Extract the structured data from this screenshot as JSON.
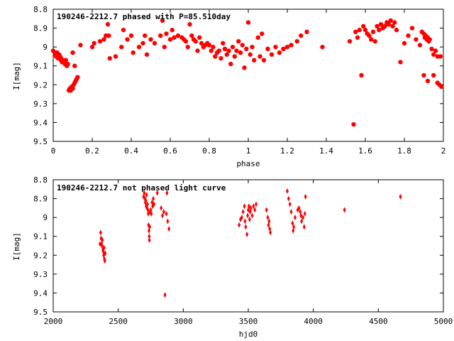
{
  "chart_data": [
    {
      "type": "scatter",
      "title": "190246-2212.7 phased with P=85.510day",
      "xlabel": "phase",
      "ylabel": "I[mag]",
      "xlim": [
        0,
        2
      ],
      "ylim": [
        9.5,
        8.8
      ],
      "y_inverted": true,
      "xticks": [
        "0",
        "0.2",
        "0.4",
        "0.6",
        "0.8",
        "1",
        "1.2",
        "1.4",
        "1.6",
        "1.8",
        "2"
      ],
      "yticks": [
        "8.8",
        "8.9",
        "9",
        "9.1",
        "9.2",
        "9.3",
        "9.4",
        "9.5"
      ],
      "color": "#ff0000",
      "marker": "filled-circle",
      "points": [
        [
          0.0,
          9.02
        ],
        [
          0.01,
          9.03
        ],
        [
          0.01,
          9.04
        ],
        [
          0.015,
          9.05
        ],
        [
          0.02,
          9.03
        ],
        [
          0.02,
          9.05
        ],
        [
          0.025,
          9.06
        ],
        [
          0.03,
          9.04
        ],
        [
          0.03,
          9.06
        ],
        [
          0.035,
          9.05
        ],
        [
          0.04,
          9.07
        ],
        [
          0.04,
          9.06
        ],
        [
          0.045,
          9.08
        ],
        [
          0.05,
          9.07
        ],
        [
          0.05,
          9.08
        ],
        [
          0.055,
          9.08
        ],
        [
          0.06,
          9.09
        ],
        [
          0.065,
          9.07
        ],
        [
          0.07,
          9.1
        ],
        [
          0.075,
          9.09
        ],
        [
          0.08,
          9.23
        ],
        [
          0.085,
          9.22
        ],
        [
          0.09,
          9.23
        ],
        [
          0.095,
          9.21
        ],
        [
          0.1,
          9.22
        ],
        [
          0.105,
          9.2
        ],
        [
          0.11,
          9.19
        ],
        [
          0.115,
          9.18
        ],
        [
          0.12,
          9.17
        ],
        [
          0.125,
          9.16
        ],
        [
          0.1,
          9.03
        ],
        [
          0.14,
          8.99
        ],
        [
          0.11,
          9.1
        ],
        [
          0.2,
          9.0
        ],
        [
          0.21,
          8.98
        ],
        [
          0.24,
          8.97
        ],
        [
          0.26,
          8.96
        ],
        [
          0.27,
          8.94
        ],
        [
          0.28,
          8.88
        ],
        [
          0.285,
          8.94
        ],
        [
          0.29,
          9.06
        ],
        [
          0.32,
          9.05
        ],
        [
          0.35,
          9.0
        ],
        [
          0.36,
          8.91
        ],
        [
          0.38,
          8.96
        ],
        [
          0.4,
          8.94
        ],
        [
          0.41,
          9.03
        ],
        [
          0.44,
          9.0
        ],
        [
          0.46,
          8.98
        ],
        [
          0.47,
          8.94
        ],
        [
          0.48,
          9.04
        ],
        [
          0.5,
          8.96
        ],
        [
          0.52,
          8.98
        ],
        [
          0.55,
          8.94
        ],
        [
          0.56,
          8.86
        ],
        [
          0.57,
          9.0
        ],
        [
          0.58,
          8.93
        ],
        [
          0.6,
          8.96
        ],
        [
          0.61,
          8.91
        ],
        [
          0.62,
          8.95
        ],
        [
          0.64,
          8.94
        ],
        [
          0.66,
          8.95
        ],
        [
          0.67,
          8.96
        ],
        [
          0.68,
          8.97
        ],
        [
          0.69,
          9.0
        ],
        [
          0.7,
          8.88
        ],
        [
          0.71,
          8.94
        ],
        [
          0.72,
          8.96
        ],
        [
          0.73,
          8.97
        ],
        [
          0.74,
          9.02
        ],
        [
          0.75,
          8.95
        ],
        [
          0.76,
          8.98
        ],
        [
          0.77,
          9.0
        ],
        [
          0.78,
          8.99
        ],
        [
          0.79,
          8.98
        ],
        [
          0.8,
          8.99
        ],
        [
          0.81,
          9.02
        ],
        [
          0.82,
          9.0
        ],
        [
          0.83,
          9.05
        ],
        [
          0.84,
          9.03
        ],
        [
          0.85,
          9.02
        ],
        [
          0.86,
          9.06
        ],
        [
          0.87,
          8.98
        ],
        [
          0.88,
          9.01
        ],
        [
          0.89,
          9.04
        ],
        [
          0.9,
          9.02
        ],
        [
          0.91,
          9.09
        ],
        [
          0.92,
          9.0
        ],
        [
          0.93,
          9.05
        ],
        [
          0.94,
          9.02
        ],
        [
          0.95,
          8.97
        ],
        [
          0.96,
          9.03
        ],
        [
          0.97,
          8.99
        ],
        [
          0.98,
          9.11
        ],
        [
          0.99,
          9.01
        ],
        [
          1.0,
          8.87
        ],
        [
          1.01,
          9.04
        ],
        [
          1.02,
          9.0
        ],
        [
          1.03,
          9.07
        ],
        [
          1.05,
          8.95
        ],
        [
          1.06,
          9.05
        ],
        [
          1.07,
          8.93
        ],
        [
          1.08,
          9.07
        ],
        [
          1.1,
          9.01
        ],
        [
          1.12,
          9.04
        ],
        [
          1.14,
          9.0
        ],
        [
          1.16,
          9.03
        ],
        [
          1.18,
          9.01
        ],
        [
          1.2,
          9.0
        ],
        [
          1.22,
          8.99
        ],
        [
          1.25,
          8.97
        ],
        [
          1.27,
          8.94
        ],
        [
          1.3,
          8.92
        ],
        [
          1.38,
          9.0
        ],
        [
          1.52,
          8.97
        ],
        [
          1.54,
          9.41
        ],
        [
          1.55,
          8.92
        ],
        [
          1.56,
          8.95
        ],
        [
          1.57,
          8.91
        ],
        [
          1.58,
          9.15
        ],
        [
          1.59,
          8.89
        ],
        [
          1.6,
          8.91
        ],
        [
          1.61,
          8.93
        ],
        [
          1.62,
          8.94
        ],
        [
          1.63,
          8.96
        ],
        [
          1.64,
          8.92
        ],
        [
          1.65,
          8.97
        ],
        [
          1.66,
          8.89
        ],
        [
          1.67,
          8.91
        ],
        [
          1.68,
          8.88
        ],
        [
          1.69,
          8.9
        ],
        [
          1.7,
          8.89
        ],
        [
          1.71,
          8.87
        ],
        [
          1.72,
          8.88
        ],
        [
          1.73,
          8.86
        ],
        [
          1.74,
          8.89
        ],
        [
          1.75,
          8.87
        ],
        [
          1.76,
          8.91
        ],
        [
          1.78,
          9.08
        ],
        [
          1.8,
          8.98
        ],
        [
          1.82,
          8.94
        ],
        [
          1.84,
          8.9
        ],
        [
          1.86,
          8.96
        ],
        [
          1.88,
          8.99
        ],
        [
          1.89,
          8.92
        ],
        [
          1.9,
          8.93
        ],
        [
          1.905,
          8.95
        ],
        [
          1.91,
          8.94
        ],
        [
          1.915,
          8.96
        ],
        [
          1.92,
          8.95
        ],
        [
          1.925,
          8.97
        ],
        [
          1.93,
          8.96
        ],
        [
          1.94,
          9.01
        ],
        [
          1.95,
          9.04
        ],
        [
          1.96,
          9.02
        ],
        [
          1.97,
          9.05
        ],
        [
          1.9,
          9.15
        ],
        [
          1.92,
          9.18
        ],
        [
          1.95,
          9.15
        ],
        [
          1.97,
          9.19
        ],
        [
          1.98,
          9.2
        ],
        [
          1.99,
          9.21
        ],
        [
          1.985,
          9.05
        ]
      ]
    },
    {
      "type": "scatter",
      "title": "190246-2212.7 not phased light curve",
      "xlabel": "hjd0",
      "ylabel": "I[mag]",
      "xlim": [
        2000,
        5000
      ],
      "ylim": [
        9.5,
        8.8
      ],
      "y_inverted": true,
      "xticks": [
        "2000",
        "2500",
        "3000",
        "3500",
        "4000",
        "4500",
        "5000"
      ],
      "yticks": [
        "8.8",
        "8.9",
        "9",
        "9.1",
        "9.2",
        "9.3",
        "9.4",
        "9.5"
      ],
      "color": "#ff0000",
      "marker": "filled-diamond",
      "points": [
        [
          2365,
          9.08
        ],
        [
          2368,
          9.11
        ],
        [
          2372,
          9.14
        ],
        [
          2375,
          9.15
        ],
        [
          2378,
          9.12
        ],
        [
          2382,
          9.17
        ],
        [
          2385,
          9.18
        ],
        [
          2388,
          9.2
        ],
        [
          2391,
          9.16
        ],
        [
          2394,
          9.22
        ],
        [
          2397,
          9.23
        ],
        [
          2400,
          9.19
        ],
        [
          2360,
          9.14
        ],
        [
          2695,
          8.89
        ],
        [
          2700,
          8.87
        ],
        [
          2705,
          8.9
        ],
        [
          2708,
          8.92
        ],
        [
          2712,
          8.91
        ],
        [
          2715,
          8.94
        ],
        [
          2718,
          8.88
        ],
        [
          2722,
          8.95
        ],
        [
          2725,
          8.93
        ],
        [
          2728,
          8.96
        ],
        [
          2731,
          8.98
        ],
        [
          2733,
          9.04
        ],
        [
          2736,
          9.07
        ],
        [
          2738,
          9.1
        ],
        [
          2740,
          9.12
        ],
        [
          2742,
          9.05
        ],
        [
          2745,
          8.97
        ],
        [
          2750,
          8.96
        ],
        [
          2755,
          8.98
        ],
        [
          2760,
          8.92
        ],
        [
          2765,
          8.94
        ],
        [
          2770,
          8.9
        ],
        [
          2775,
          8.93
        ],
        [
          2800,
          8.87
        ],
        [
          2830,
          8.95
        ],
        [
          2840,
          8.99
        ],
        [
          2850,
          8.97
        ],
        [
          2860,
          9.41
        ],
        [
          2870,
          8.98
        ],
        [
          2880,
          9.02
        ],
        [
          2890,
          9.06
        ],
        [
          2875,
          8.87
        ],
        [
          3430,
          9.04
        ],
        [
          3440,
          9.01
        ],
        [
          3450,
          9.0
        ],
        [
          3460,
          8.97
        ],
        [
          3470,
          8.94
        ],
        [
          3475,
          9.02
        ],
        [
          3480,
          9.05
        ],
        [
          3490,
          9.09
        ],
        [
          3495,
          8.99
        ],
        [
          3500,
          8.96
        ],
        [
          3505,
          8.94
        ],
        [
          3510,
          9.01
        ],
        [
          3515,
          8.97
        ],
        [
          3520,
          8.95
        ],
        [
          3530,
          8.99
        ],
        [
          3540,
          8.94
        ],
        [
          3550,
          8.96
        ],
        [
          3560,
          8.93
        ],
        [
          3640,
          8.96
        ],
        [
          3650,
          9.0
        ],
        [
          3655,
          9.04
        ],
        [
          3660,
          9.02
        ],
        [
          3665,
          9.06
        ],
        [
          3670,
          9.08
        ],
        [
          3800,
          8.86
        ],
        [
          3810,
          8.9
        ],
        [
          3820,
          8.93
        ],
        [
          3830,
          8.97
        ],
        [
          3840,
          9.03
        ],
        [
          3845,
          9.07
        ],
        [
          3850,
          9.05
        ],
        [
          3860,
          9.0
        ],
        [
          3880,
          8.96
        ],
        [
          3890,
          8.95
        ],
        [
          3900,
          8.97
        ],
        [
          3905,
          8.99
        ],
        [
          3910,
          9.02
        ],
        [
          3920,
          9.0
        ],
        [
          3930,
          9.05
        ],
        [
          3935,
          8.98
        ],
        [
          3940,
          8.89
        ],
        [
          4240,
          8.96
        ],
        [
          4670,
          8.89
        ]
      ]
    }
  ]
}
